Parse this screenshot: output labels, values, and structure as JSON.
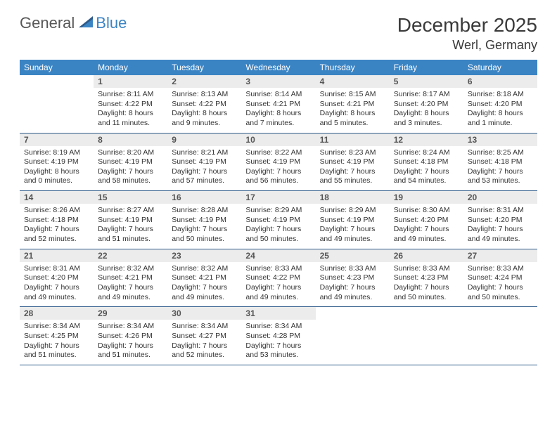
{
  "brand": {
    "part1": "General",
    "part2": "Blue"
  },
  "title": "December 2025",
  "location": "Werl, Germany",
  "colors": {
    "header_bg": "#3b84c4",
    "header_text": "#ffffff",
    "daynum_bg": "#ececec",
    "rule": "#2e5a8a",
    "text": "#333333"
  },
  "day_headers": [
    "Sunday",
    "Monday",
    "Tuesday",
    "Wednesday",
    "Thursday",
    "Friday",
    "Saturday"
  ],
  "weeks": [
    [
      {
        "n": "",
        "sr": "",
        "ss": "",
        "dl": ""
      },
      {
        "n": "1",
        "sr": "8:11 AM",
        "ss": "4:22 PM",
        "dl": "8 hours and 11 minutes."
      },
      {
        "n": "2",
        "sr": "8:13 AM",
        "ss": "4:22 PM",
        "dl": "8 hours and 9 minutes."
      },
      {
        "n": "3",
        "sr": "8:14 AM",
        "ss": "4:21 PM",
        "dl": "8 hours and 7 minutes."
      },
      {
        "n": "4",
        "sr": "8:15 AM",
        "ss": "4:21 PM",
        "dl": "8 hours and 5 minutes."
      },
      {
        "n": "5",
        "sr": "8:17 AM",
        "ss": "4:20 PM",
        "dl": "8 hours and 3 minutes."
      },
      {
        "n": "6",
        "sr": "8:18 AM",
        "ss": "4:20 PM",
        "dl": "8 hours and 1 minute."
      }
    ],
    [
      {
        "n": "7",
        "sr": "8:19 AM",
        "ss": "4:19 PM",
        "dl": "8 hours and 0 minutes."
      },
      {
        "n": "8",
        "sr": "8:20 AM",
        "ss": "4:19 PM",
        "dl": "7 hours and 58 minutes."
      },
      {
        "n": "9",
        "sr": "8:21 AM",
        "ss": "4:19 PM",
        "dl": "7 hours and 57 minutes."
      },
      {
        "n": "10",
        "sr": "8:22 AM",
        "ss": "4:19 PM",
        "dl": "7 hours and 56 minutes."
      },
      {
        "n": "11",
        "sr": "8:23 AM",
        "ss": "4:19 PM",
        "dl": "7 hours and 55 minutes."
      },
      {
        "n": "12",
        "sr": "8:24 AM",
        "ss": "4:18 PM",
        "dl": "7 hours and 54 minutes."
      },
      {
        "n": "13",
        "sr": "8:25 AM",
        "ss": "4:18 PM",
        "dl": "7 hours and 53 minutes."
      }
    ],
    [
      {
        "n": "14",
        "sr": "8:26 AM",
        "ss": "4:18 PM",
        "dl": "7 hours and 52 minutes."
      },
      {
        "n": "15",
        "sr": "8:27 AM",
        "ss": "4:19 PM",
        "dl": "7 hours and 51 minutes."
      },
      {
        "n": "16",
        "sr": "8:28 AM",
        "ss": "4:19 PM",
        "dl": "7 hours and 50 minutes."
      },
      {
        "n": "17",
        "sr": "8:29 AM",
        "ss": "4:19 PM",
        "dl": "7 hours and 50 minutes."
      },
      {
        "n": "18",
        "sr": "8:29 AM",
        "ss": "4:19 PM",
        "dl": "7 hours and 49 minutes."
      },
      {
        "n": "19",
        "sr": "8:30 AM",
        "ss": "4:20 PM",
        "dl": "7 hours and 49 minutes."
      },
      {
        "n": "20",
        "sr": "8:31 AM",
        "ss": "4:20 PM",
        "dl": "7 hours and 49 minutes."
      }
    ],
    [
      {
        "n": "21",
        "sr": "8:31 AM",
        "ss": "4:20 PM",
        "dl": "7 hours and 49 minutes."
      },
      {
        "n": "22",
        "sr": "8:32 AM",
        "ss": "4:21 PM",
        "dl": "7 hours and 49 minutes."
      },
      {
        "n": "23",
        "sr": "8:32 AM",
        "ss": "4:21 PM",
        "dl": "7 hours and 49 minutes."
      },
      {
        "n": "24",
        "sr": "8:33 AM",
        "ss": "4:22 PM",
        "dl": "7 hours and 49 minutes."
      },
      {
        "n": "25",
        "sr": "8:33 AM",
        "ss": "4:23 PM",
        "dl": "7 hours and 49 minutes."
      },
      {
        "n": "26",
        "sr": "8:33 AM",
        "ss": "4:23 PM",
        "dl": "7 hours and 50 minutes."
      },
      {
        "n": "27",
        "sr": "8:33 AM",
        "ss": "4:24 PM",
        "dl": "7 hours and 50 minutes."
      }
    ],
    [
      {
        "n": "28",
        "sr": "8:34 AM",
        "ss": "4:25 PM",
        "dl": "7 hours and 51 minutes."
      },
      {
        "n": "29",
        "sr": "8:34 AM",
        "ss": "4:26 PM",
        "dl": "7 hours and 51 minutes."
      },
      {
        "n": "30",
        "sr": "8:34 AM",
        "ss": "4:27 PM",
        "dl": "7 hours and 52 minutes."
      },
      {
        "n": "31",
        "sr": "8:34 AM",
        "ss": "4:28 PM",
        "dl": "7 hours and 53 minutes."
      },
      {
        "n": "",
        "sr": "",
        "ss": "",
        "dl": ""
      },
      {
        "n": "",
        "sr": "",
        "ss": "",
        "dl": ""
      },
      {
        "n": "",
        "sr": "",
        "ss": "",
        "dl": ""
      }
    ]
  ],
  "labels": {
    "sunrise": "Sunrise: ",
    "sunset": "Sunset: ",
    "daylight": "Daylight: "
  }
}
